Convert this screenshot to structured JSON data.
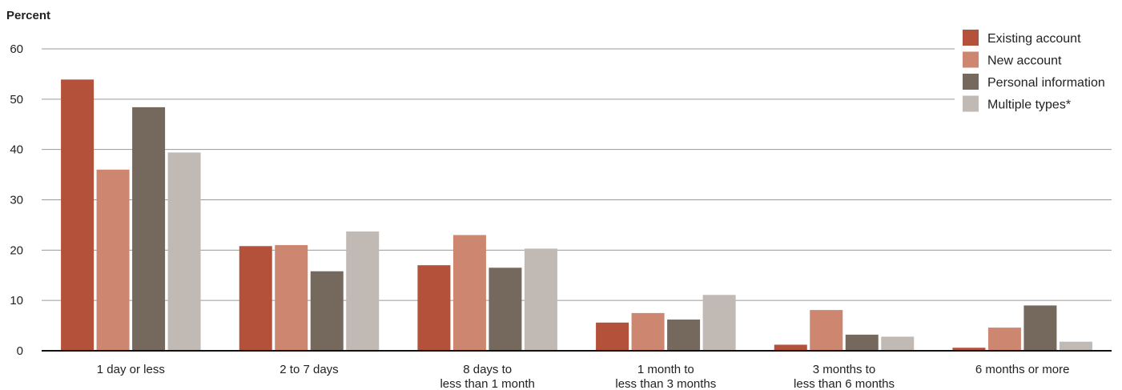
{
  "chart_data": {
    "type": "bar",
    "ylabel": "Percent",
    "ylim": [
      0,
      60
    ],
    "yticks": [
      0,
      10,
      20,
      30,
      40,
      50,
      60
    ],
    "grid": true,
    "legend_position": "top-right",
    "categories": [
      [
        "1 day or less"
      ],
      [
        "2 to 7 days"
      ],
      [
        "8 days to",
        "less than 1 month"
      ],
      [
        "1 month to",
        "less than 3 months"
      ],
      [
        "3 months to",
        "less than 6 months"
      ],
      [
        "6 months or more"
      ]
    ],
    "series": [
      {
        "name": "Existing account",
        "color": "#b3513a",
        "values": [
          53.9,
          20.8,
          17.0,
          5.6,
          1.2,
          0.6
        ]
      },
      {
        "name": "New account",
        "color": "#cd8770",
        "values": [
          36.0,
          21.0,
          23.0,
          7.5,
          8.1,
          4.6
        ]
      },
      {
        "name": "Personal information",
        "color": "#75685c",
        "values": [
          48.4,
          15.8,
          16.5,
          6.2,
          3.2,
          9.0
        ]
      },
      {
        "name": "Multiple types*",
        "color": "#c1b9b4",
        "values": [
          39.4,
          23.7,
          20.3,
          11.1,
          2.8,
          1.8
        ]
      }
    ]
  }
}
